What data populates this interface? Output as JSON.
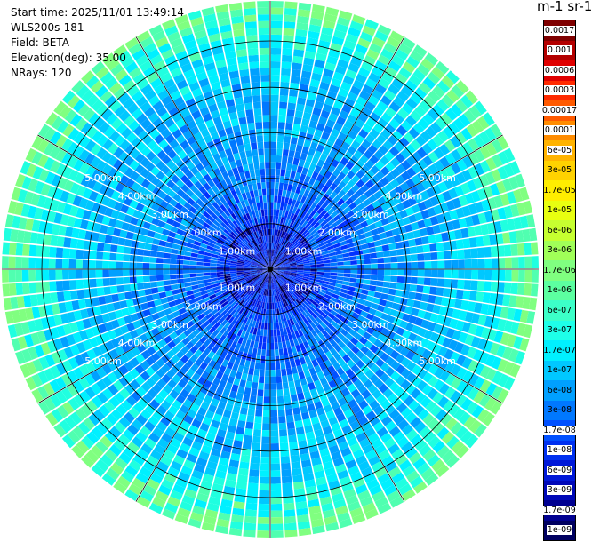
{
  "header": {
    "start_time": "Start time: 2025/11/01 13:49:14",
    "instrument": "WLS200s-181",
    "field": "Field: BETA",
    "elevation": "Elevation(deg): 35.00",
    "nrays": "NRays: 120"
  },
  "colorbar": {
    "title": "m-1 sr-1",
    "labels": [
      "0.0017",
      "0.001",
      "0.0006",
      "0.0003",
      "0.00017",
      "0.0001",
      "6e-05",
      "3e-05",
      "1.7e-05",
      "1e-05",
      "6e-06",
      "3e-06",
      "1.7e-06",
      "1e-06",
      "6e-07",
      "3e-07",
      "1.7e-07",
      "1e-07",
      "6e-08",
      "3e-08",
      "1.7e-08",
      "1e-08",
      "6e-09",
      "3e-09",
      "1.7e-09",
      "1e-09"
    ],
    "colors": [
      "#7f0000",
      "#b30000",
      "#e00000",
      "#ff2a00",
      "#ff5a00",
      "#ff8c00",
      "#ffb300",
      "#ffd200",
      "#ffee00",
      "#e8ff10",
      "#c6ff30",
      "#a0ff58",
      "#80ff80",
      "#5cffa0",
      "#3cffc8",
      "#1effe8",
      "#00f0ff",
      "#00c8ff",
      "#00a0ff",
      "#0078ff",
      "#0050ff",
      "#0030f0",
      "#0018d8",
      "#0008b8",
      "#000090",
      "#000060"
    ]
  },
  "ppi": {
    "ring_labels": [
      "1.00km",
      "2.00km",
      "3.00km",
      "4.00km",
      "5.00km"
    ],
    "ring_values_km": [
      1,
      2,
      3,
      4,
      5
    ],
    "max_range_km": 5.9,
    "nrays": 120
  }
}
